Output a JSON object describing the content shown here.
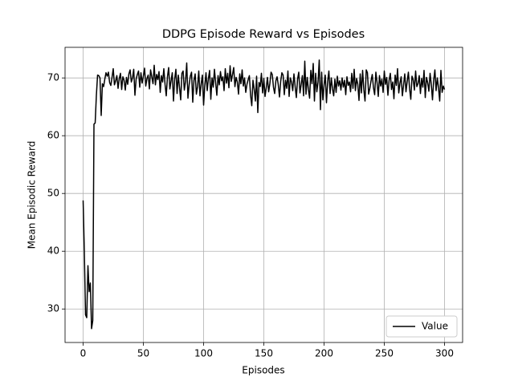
{
  "chart_data": {
    "type": "line",
    "title": "DDPG Episode Reward vs Episodes",
    "x_label": "Episodes",
    "y_label": "Mean Episodic Reward",
    "xlim": [
      -15,
      315
    ],
    "ylim": [
      24.2,
      75.3
    ],
    "xticks": [
      0,
      50,
      100,
      150,
      200,
      250,
      300
    ],
    "yticks": [
      30,
      40,
      50,
      60,
      70
    ],
    "grid": true,
    "legend_position": "lower right",
    "x": [
      0,
      1,
      2,
      3,
      4,
      5,
      6,
      7,
      8,
      9,
      10,
      11,
      12,
      13,
      14,
      15,
      16,
      17,
      18,
      19,
      20,
      21,
      22,
      23,
      24,
      25,
      26,
      27,
      28,
      29,
      30,
      31,
      32,
      33,
      34,
      35,
      36,
      37,
      38,
      39,
      40,
      41,
      42,
      43,
      44,
      45,
      46,
      47,
      48,
      49,
      50,
      51,
      52,
      53,
      54,
      55,
      56,
      57,
      58,
      59,
      60,
      61,
      62,
      63,
      64,
      65,
      66,
      67,
      68,
      69,
      70,
      71,
      72,
      73,
      74,
      75,
      76,
      77,
      78,
      79,
      80,
      81,
      82,
      83,
      84,
      85,
      86,
      87,
      88,
      89,
      90,
      91,
      92,
      93,
      94,
      95,
      96,
      97,
      98,
      99,
      100,
      101,
      102,
      103,
      104,
      105,
      106,
      107,
      108,
      109,
      110,
      111,
      112,
      113,
      114,
      115,
      116,
      117,
      118,
      119,
      120,
      121,
      122,
      123,
      124,
      125,
      126,
      127,
      128,
      129,
      130,
      131,
      132,
      133,
      134,
      135,
      136,
      137,
      138,
      139,
      140,
      141,
      142,
      143,
      144,
      145,
      146,
      147,
      148,
      149,
      150,
      151,
      152,
      153,
      154,
      155,
      156,
      157,
      158,
      159,
      160,
      161,
      162,
      163,
      164,
      165,
      166,
      167,
      168,
      169,
      170,
      171,
      172,
      173,
      174,
      175,
      176,
      177,
      178,
      179,
      180,
      181,
      182,
      183,
      184,
      185,
      186,
      187,
      188,
      189,
      190,
      191,
      192,
      193,
      194,
      195,
      196,
      197,
      198,
      199,
      200,
      201,
      202,
      203,
      204,
      205,
      206,
      207,
      208,
      209,
      210,
      211,
      212,
      213,
      214,
      215,
      216,
      217,
      218,
      219,
      220,
      221,
      222,
      223,
      224,
      225,
      226,
      227,
      228,
      229,
      230,
      231,
      232,
      233,
      234,
      235,
      236,
      237,
      238,
      239,
      240,
      241,
      242,
      243,
      244,
      245,
      246,
      247,
      248,
      249,
      250,
      251,
      252,
      253,
      254,
      255,
      256,
      257,
      258,
      259,
      260,
      261,
      262,
      263,
      264,
      265,
      266,
      267,
      268,
      269,
      270,
      271,
      272,
      273,
      274,
      275,
      276,
      277,
      278,
      279,
      280,
      281,
      282,
      283,
      284,
      285,
      286,
      287,
      288,
      289,
      290,
      291,
      292,
      293,
      294,
      295,
      296,
      297,
      298,
      299,
      300
    ],
    "series": [
      {
        "name": "Value",
        "color": "#000000",
        "values": [
          48.8,
          40.0,
          29.0,
          28.5,
          37.5,
          33.0,
          34.5,
          26.6,
          28.0,
          62.0,
          62.2,
          67.0,
          70.5,
          70.4,
          70.0,
          63.5,
          69.0,
          68.5,
          69.8,
          70.9,
          70.3,
          71.0,
          69.2,
          68.7,
          70.1,
          71.6,
          68.8,
          69.5,
          70.4,
          68.2,
          69.9,
          70.8,
          68.0,
          70.2,
          69.6,
          67.9,
          70.1,
          68.9,
          70.7,
          71.4,
          69.3,
          70.0,
          71.5,
          67.0,
          69.8,
          70.6,
          71.2,
          68.4,
          70.9,
          69.1,
          70.3,
          71.7,
          68.6,
          69.9,
          70.5,
          68.1,
          71.4,
          70.2,
          69.0,
          72.2,
          68.8,
          70.6,
          69.7,
          71.1,
          67.5,
          70.4,
          69.3,
          71.6,
          68.9,
          66.9,
          70.2,
          71.8,
          68.1,
          69.5,
          70.9,
          66.0,
          69.8,
          71.5,
          67.3,
          70.5,
          68.4,
          66.2,
          70.8,
          71.2,
          67.9,
          69.4,
          72.6,
          66.5,
          68.8,
          70.3,
          71.0,
          65.8,
          69.6,
          70.7,
          67.2,
          68.5,
          71.2,
          66.9,
          69.0,
          70.5,
          65.3,
          68.7,
          70.9,
          67.8,
          69.9,
          71.3,
          66.3,
          70.0,
          68.4,
          71.5,
          69.2,
          67.0,
          70.4,
          68.8,
          71.1,
          69.5,
          70.2,
          67.8,
          71.6,
          69.1,
          70.8,
          68.3,
          72.1,
          69.4,
          70.6,
          71.8,
          68.5,
          70.1,
          69.3,
          67.2,
          70.7,
          69.0,
          71.4,
          68.6,
          70.0,
          67.5,
          68.9,
          69.7,
          70.4,
          67.0,
          65.2,
          69.6,
          68.1,
          66.0,
          70.3,
          64.0,
          69.2,
          68.5,
          70.8,
          67.4,
          69.9,
          66.8,
          68.3,
          70.1,
          67.6,
          69.0,
          71.0,
          70.6,
          68.4,
          67.3,
          69.5,
          70.2,
          68.8,
          66.7,
          69.4,
          70.9,
          70.5,
          67.1,
          69.6,
          68.2,
          71.2,
          66.8,
          70.0,
          69.3,
          67.8,
          70.7,
          68.5,
          66.6,
          69.8,
          71.0,
          67.4,
          68.9,
          70.4,
          66.9,
          72.9,
          67.2,
          70.1,
          68.0,
          66.5,
          71.3,
          69.0,
          72.5,
          66.0,
          70.8,
          67.6,
          69.3,
          73.1,
          64.5,
          71.0,
          66.2,
          68.8,
          70.5,
          65.7,
          69.4,
          71.2,
          67.3,
          70.0,
          68.1,
          66.9,
          69.8,
          67.5,
          70.3,
          68.6,
          69.5,
          67.9,
          70.0,
          68.4,
          69.6,
          67.1,
          70.2,
          68.7,
          69.3,
          67.6,
          70.8,
          68.2,
          71.5,
          67.8,
          69.9,
          68.9,
          66.1,
          70.7,
          67.4,
          71.3,
          68.0,
          66.0,
          71.4,
          70.9,
          67.2,
          68.2,
          69.5,
          70.6,
          68.3,
          67.1,
          71.0,
          69.2,
          66.8,
          70.4,
          68.6,
          69.8,
          67.5,
          71.2,
          68.9,
          70.1,
          67.0,
          69.6,
          70.8,
          68.0,
          69.3,
          66.4,
          70.5,
          68.7,
          71.6,
          67.4,
          69.1,
          70.2,
          66.9,
          68.8,
          70.7,
          67.6,
          69.4,
          71.0,
          68.1,
          66.3,
          70.3,
          69.7,
          67.9,
          71.2,
          68.5,
          69.0,
          70.4,
          67.3,
          69.9,
          68.4,
          71.3,
          66.6,
          70.1,
          69.2,
          67.7,
          70.8,
          68.9,
          66.2,
          69.6,
          71.4,
          67.8,
          70.0,
          68.3,
          66.0,
          71.3,
          67.5,
          68.6,
          68.0
        ]
      }
    ]
  }
}
